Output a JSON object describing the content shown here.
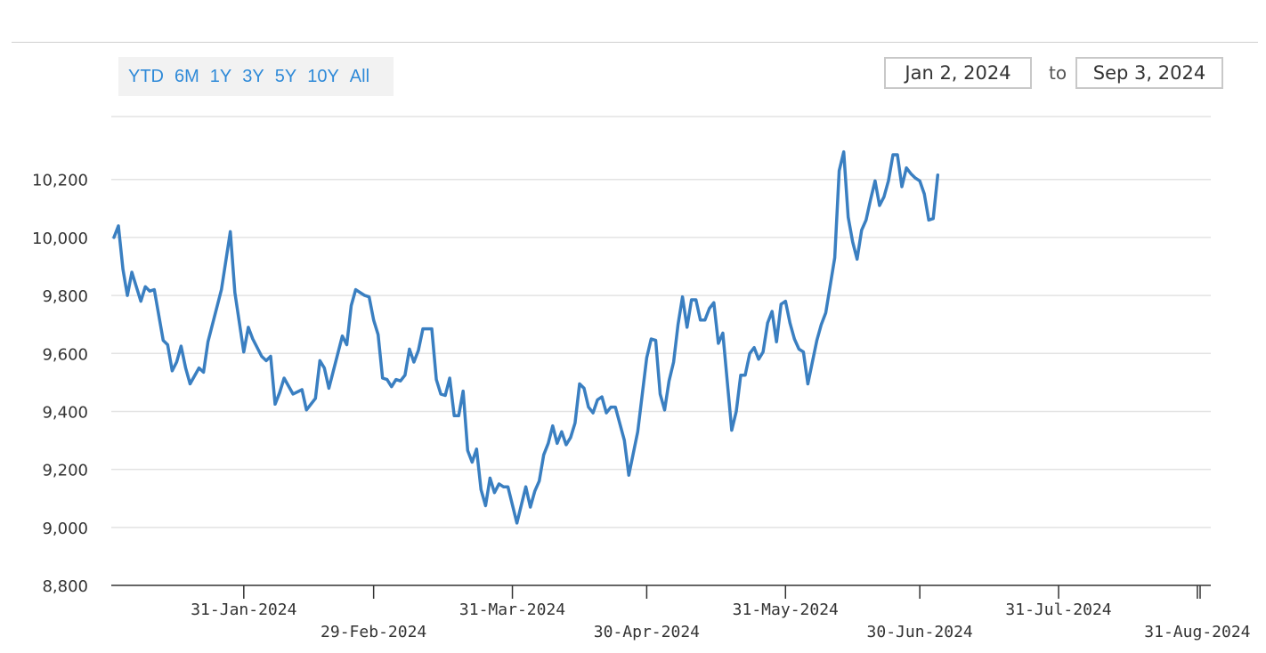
{
  "range_selector": {
    "buttons": [
      "YTD",
      "6M",
      "1Y",
      "3Y",
      "5Y",
      "10Y",
      "All"
    ]
  },
  "date_range": {
    "from": "Jan 2, 2024",
    "to_label": "to",
    "to": "Sep 3, 2024"
  },
  "colors": {
    "series_primary": "#3a7fc1",
    "series_secondary": "#7a9a2a",
    "grid": "#e3e3e3",
    "axis": "#333333"
  },
  "chart_data": {
    "type": "line",
    "title": "",
    "xlabel": "",
    "ylabel": "",
    "ylim": [
      8800,
      10420
    ],
    "yticks": [
      8800,
      9000,
      9200,
      9400,
      9600,
      9800,
      10000,
      10200
    ],
    "ytick_labels": [
      "8,800",
      "9,000",
      "9,200",
      "9,400",
      "9,600",
      "9,800",
      "10,000",
      "10,200"
    ],
    "xlim": [
      "2024-01-02",
      "2024-09-03"
    ],
    "xticks": [
      {
        "date": "2024-01-31",
        "label": "31-Jan-2024",
        "row": 0
      },
      {
        "date": "2024-02-29",
        "label": "29-Feb-2024",
        "row": 1
      },
      {
        "date": "2024-03-31",
        "label": "31-Mar-2024",
        "row": 0
      },
      {
        "date": "2024-04-30",
        "label": "30-Apr-2024",
        "row": 1
      },
      {
        "date": "2024-05-31",
        "label": "31-May-2024",
        "row": 0
      },
      {
        "date": "2024-06-30",
        "label": "30-Jun-2024",
        "row": 1
      },
      {
        "date": "2024-07-31",
        "label": "31-Jul-2024",
        "row": 0
      },
      {
        "date": "2024-08-31",
        "label": "31-Aug-2024",
        "row": 1
      }
    ],
    "grid": true,
    "series": [
      {
        "points": [
          [
            "2024-01-02",
            10000
          ],
          [
            "2024-01-03",
            10040
          ],
          [
            "2024-01-04",
            9890
          ],
          [
            "2024-01-05",
            9800
          ],
          [
            "2024-01-06",
            9880
          ],
          [
            "2024-01-08",
            9780
          ],
          [
            "2024-01-09",
            9830
          ],
          [
            "2024-01-10",
            9815
          ],
          [
            "2024-01-11",
            9820
          ],
          [
            "2024-01-13",
            9645
          ],
          [
            "2024-01-14",
            9630
          ],
          [
            "2024-01-15",
            9540
          ],
          [
            "2024-01-16",
            9570
          ],
          [
            "2024-01-17",
            9625
          ],
          [
            "2024-01-18",
            9550
          ],
          [
            "2024-01-19",
            9495
          ],
          [
            "2024-01-21",
            9550
          ],
          [
            "2024-01-22",
            9535
          ],
          [
            "2024-01-23",
            9640
          ],
          [
            "2024-01-26",
            9820
          ],
          [
            "2024-01-28",
            10020
          ],
          [
            "2024-01-29",
            9810
          ],
          [
            "2024-01-31",
            9605
          ],
          [
            "2024-02-01",
            9690
          ],
          [
            "2024-02-02",
            9650
          ],
          [
            "2024-02-04",
            9590
          ],
          [
            "2024-02-05",
            9575
          ],
          [
            "2024-02-06",
            9590
          ],
          [
            "2024-02-07",
            9425
          ],
          [
            "2024-02-08",
            9465
          ],
          [
            "2024-02-09",
            9515
          ],
          [
            "2024-02-11",
            9460
          ],
          [
            "2024-02-13",
            9475
          ],
          [
            "2024-02-14",
            9405
          ],
          [
            "2024-02-16",
            9445
          ],
          [
            "2024-02-17",
            9575
          ],
          [
            "2024-02-18",
            9550
          ],
          [
            "2024-02-19",
            9480
          ],
          [
            "2024-02-22",
            9660
          ],
          [
            "2024-02-23",
            9630
          ],
          [
            "2024-02-24",
            9765
          ],
          [
            "2024-02-25",
            9820
          ],
          [
            "2024-02-27",
            9800
          ],
          [
            "2024-02-28",
            9795
          ],
          [
            "2024-02-29",
            9715
          ],
          [
            "2024-03-01",
            9665
          ],
          [
            "2024-03-02",
            9515
          ],
          [
            "2024-03-03",
            9510
          ],
          [
            "2024-03-04",
            9485
          ],
          [
            "2024-03-05",
            9510
          ],
          [
            "2024-03-06",
            9505
          ],
          [
            "2024-03-07",
            9525
          ],
          [
            "2024-03-08",
            9615
          ],
          [
            "2024-03-09",
            9570
          ],
          [
            "2024-03-10",
            9610
          ],
          [
            "2024-03-11",
            9685
          ],
          [
            "2024-03-13",
            9685
          ],
          [
            "2024-03-14",
            9510
          ],
          [
            "2024-03-15",
            9460
          ],
          [
            "2024-03-16",
            9455
          ],
          [
            "2024-03-17",
            9515
          ],
          [
            "2024-03-18",
            9385
          ],
          [
            "2024-03-19",
            9385
          ],
          [
            "2024-03-20",
            9470
          ],
          [
            "2024-03-21",
            9265
          ],
          [
            "2024-03-22",
            9225
          ],
          [
            "2024-03-23",
            9270
          ],
          [
            "2024-03-24",
            9130
          ],
          [
            "2024-03-25",
            9075
          ],
          [
            "2024-03-26",
            9170
          ],
          [
            "2024-03-27",
            9120
          ],
          [
            "2024-03-28",
            9150
          ],
          [
            "2024-03-29",
            9140
          ],
          [
            "2024-03-30",
            9140
          ],
          [
            "2024-04-01",
            9015
          ],
          [
            "2024-04-03",
            9140
          ],
          [
            "2024-04-04",
            9070
          ],
          [
            "2024-04-05",
            9125
          ],
          [
            "2024-04-06",
            9160
          ],
          [
            "2024-04-07",
            9250
          ],
          [
            "2024-04-08",
            9290
          ],
          [
            "2024-04-09",
            9350
          ],
          [
            "2024-04-10",
            9290
          ],
          [
            "2024-04-11",
            9330
          ],
          [
            "2024-04-12",
            9285
          ],
          [
            "2024-04-13",
            9310
          ],
          [
            "2024-04-14",
            9360
          ],
          [
            "2024-04-15",
            9495
          ],
          [
            "2024-04-16",
            9480
          ],
          [
            "2024-04-17",
            9415
          ],
          [
            "2024-04-18",
            9395
          ],
          [
            "2024-04-19",
            9440
          ],
          [
            "2024-04-20",
            9450
          ],
          [
            "2024-04-21",
            9395
          ],
          [
            "2024-04-22",
            9415
          ],
          [
            "2024-04-23",
            9415
          ],
          [
            "2024-04-25",
            9300
          ],
          [
            "2024-04-26",
            9180
          ],
          [
            "2024-04-28",
            9330
          ],
          [
            "2024-04-30",
            9585
          ],
          [
            "2024-05-01",
            9650
          ],
          [
            "2024-05-02",
            9645
          ],
          [
            "2024-05-03",
            9460
          ],
          [
            "2024-05-04",
            9405
          ],
          [
            "2024-05-05",
            9505
          ],
          [
            "2024-05-06",
            9570
          ],
          [
            "2024-05-07",
            9700
          ],
          [
            "2024-05-08",
            9795
          ],
          [
            "2024-05-09",
            9690
          ],
          [
            "2024-05-10",
            9785
          ],
          [
            "2024-05-11",
            9785
          ],
          [
            "2024-05-12",
            9715
          ],
          [
            "2024-05-13",
            9715
          ],
          [
            "2024-05-14",
            9755
          ],
          [
            "2024-05-15",
            9775
          ],
          [
            "2024-05-16",
            9635
          ],
          [
            "2024-05-17",
            9670
          ],
          [
            "2024-05-19",
            9335
          ],
          [
            "2024-05-20",
            9400
          ],
          [
            "2024-05-21",
            9525
          ],
          [
            "2024-05-22",
            9525
          ],
          [
            "2024-05-23",
            9600
          ],
          [
            "2024-05-24",
            9620
          ],
          [
            "2024-05-25",
            9580
          ],
          [
            "2024-05-26",
            9605
          ],
          [
            "2024-05-27",
            9705
          ],
          [
            "2024-05-28",
            9745
          ],
          [
            "2024-05-29",
            9640
          ],
          [
            "2024-05-30",
            9770
          ],
          [
            "2024-05-31",
            9780
          ],
          [
            "2024-06-01",
            9705
          ],
          [
            "2024-06-02",
            9650
          ],
          [
            "2024-06-03",
            9615
          ],
          [
            "2024-06-04",
            9605
          ],
          [
            "2024-06-05",
            9495
          ],
          [
            "2024-06-07",
            9645
          ],
          [
            "2024-06-08",
            9700
          ],
          [
            "2024-06-09",
            9740
          ],
          [
            "2024-06-11",
            9930
          ],
          [
            "2024-06-12",
            10230
          ],
          [
            "2024-06-13",
            10295
          ],
          [
            "2024-06-14",
            10070
          ],
          [
            "2024-06-15",
            9985
          ],
          [
            "2024-06-16",
            9925
          ],
          [
            "2024-06-17",
            10025
          ],
          [
            "2024-06-18",
            10060
          ],
          [
            "2024-06-19",
            10130
          ],
          [
            "2024-06-20",
            10195
          ],
          [
            "2024-06-21",
            10110
          ],
          [
            "2024-06-22",
            10140
          ],
          [
            "2024-06-23",
            10195
          ],
          [
            "2024-06-24",
            10285
          ],
          [
            "2024-06-25",
            10285
          ],
          [
            "2024-06-26",
            10175
          ],
          [
            "2024-06-27",
            10240
          ],
          [
            "2024-06-28",
            10220
          ],
          [
            "2024-06-29",
            10205
          ],
          [
            "2024-06-30",
            10195
          ],
          [
            "2024-07-01",
            10150
          ],
          [
            "2024-07-02",
            10060
          ],
          [
            "2024-07-03",
            10065
          ],
          [
            "2024-07-04",
            10215
          ]
        ],
        "color": "#3a7fc1"
      }
    ],
    "legend": "none"
  }
}
